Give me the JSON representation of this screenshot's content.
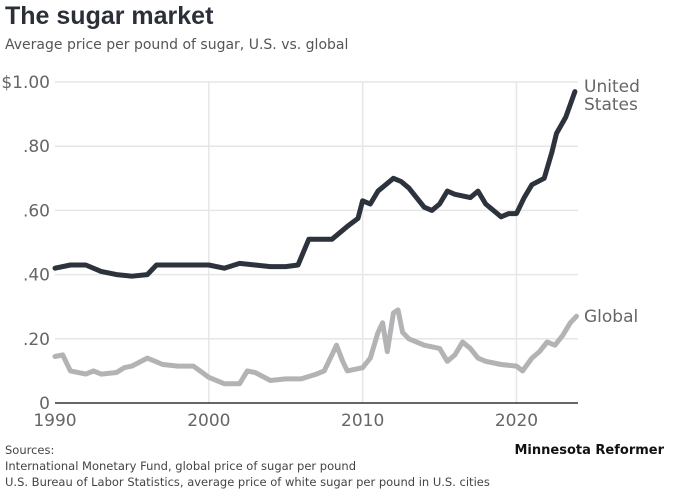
{
  "title": "The sugar market",
  "subtitle": "Average price per pound of sugar, U.S. vs. global",
  "brand": "Minnesota Reformer",
  "sources": [
    "Sources:",
    "International Monetary Fund, global price of sugar per pound",
    "U.S. Bureau of Labor Statistics, average price of white sugar per pound in U.S. cities"
  ],
  "colors": {
    "us": "#2d333d",
    "global": "#b3b3b6",
    "grid": "#e6e6e6"
  },
  "chart_data": {
    "type": "line",
    "title": "The sugar market",
    "xlim": [
      1990,
      2024
    ],
    "ylim": [
      0,
      1.0
    ],
    "grid": true,
    "x_ticks": [
      1990,
      2000,
      2010,
      2020
    ],
    "x_tick_labels": [
      "1990",
      "2000",
      "2010",
      "2020"
    ],
    "y_ticks": [
      0,
      0.2,
      0.4,
      0.6,
      0.8,
      1.0
    ],
    "y_tick_labels": [
      "0",
      ".20",
      ".40",
      ".60",
      ".80",
      "$1.00"
    ],
    "series": [
      {
        "name": "United States",
        "label_lines": [
          "United",
          "States"
        ],
        "x": [
          1990,
          1991,
          1992,
          1993,
          1994,
          1995,
          1996,
          1996.6,
          1998,
          2000,
          2001,
          2002,
          2003,
          2004,
          2005,
          2005.8,
          2006.5,
          2008,
          2009,
          2009.7,
          2010,
          2010.5,
          2011,
          2012,
          2012.5,
          2013,
          2014,
          2014.5,
          2015,
          2015.5,
          2016,
          2017,
          2017.5,
          2018,
          2019,
          2019.5,
          2020,
          2020.5,
          2021,
          2021.8,
          2022.3,
          2022.6,
          2023.2,
          2023.8
        ],
        "y": [
          0.42,
          0.43,
          0.43,
          0.41,
          0.4,
          0.395,
          0.4,
          0.43,
          0.43,
          0.43,
          0.42,
          0.435,
          0.43,
          0.425,
          0.425,
          0.43,
          0.51,
          0.51,
          0.55,
          0.575,
          0.63,
          0.62,
          0.66,
          0.7,
          0.69,
          0.67,
          0.61,
          0.6,
          0.62,
          0.66,
          0.65,
          0.64,
          0.66,
          0.62,
          0.58,
          0.59,
          0.59,
          0.64,
          0.68,
          0.7,
          0.78,
          0.84,
          0.89,
          0.97
        ]
      },
      {
        "name": "Global",
        "label_lines": [
          "Global"
        ],
        "x": [
          1990,
          1990.5,
          1991,
          1992,
          1992.5,
          1993,
          1994,
          1994.5,
          1995,
          1996,
          1997,
          1998,
          1999,
          2000,
          2001,
          2002,
          2002.5,
          2003,
          2004,
          2005,
          2006,
          2007,
          2007.5,
          2008,
          2008.3,
          2008.7,
          2009,
          2010,
          2010.5,
          2011,
          2011.3,
          2011.6,
          2012,
          2012.3,
          2012.6,
          2013,
          2014,
          2015,
          2015.5,
          2016,
          2016.5,
          2017,
          2017.5,
          2018,
          2019,
          2020,
          2020.4,
          2021,
          2021.5,
          2022,
          2022.5,
          2023,
          2023.5,
          2023.9
        ],
        "y": [
          0.145,
          0.15,
          0.1,
          0.09,
          0.1,
          0.09,
          0.095,
          0.11,
          0.115,
          0.14,
          0.12,
          0.115,
          0.115,
          0.08,
          0.06,
          0.06,
          0.1,
          0.095,
          0.07,
          0.075,
          0.075,
          0.09,
          0.1,
          0.15,
          0.18,
          0.13,
          0.1,
          0.11,
          0.14,
          0.22,
          0.25,
          0.16,
          0.28,
          0.29,
          0.22,
          0.2,
          0.18,
          0.17,
          0.13,
          0.15,
          0.19,
          0.17,
          0.14,
          0.13,
          0.12,
          0.115,
          0.1,
          0.14,
          0.16,
          0.19,
          0.18,
          0.21,
          0.25,
          0.27
        ]
      }
    ]
  }
}
